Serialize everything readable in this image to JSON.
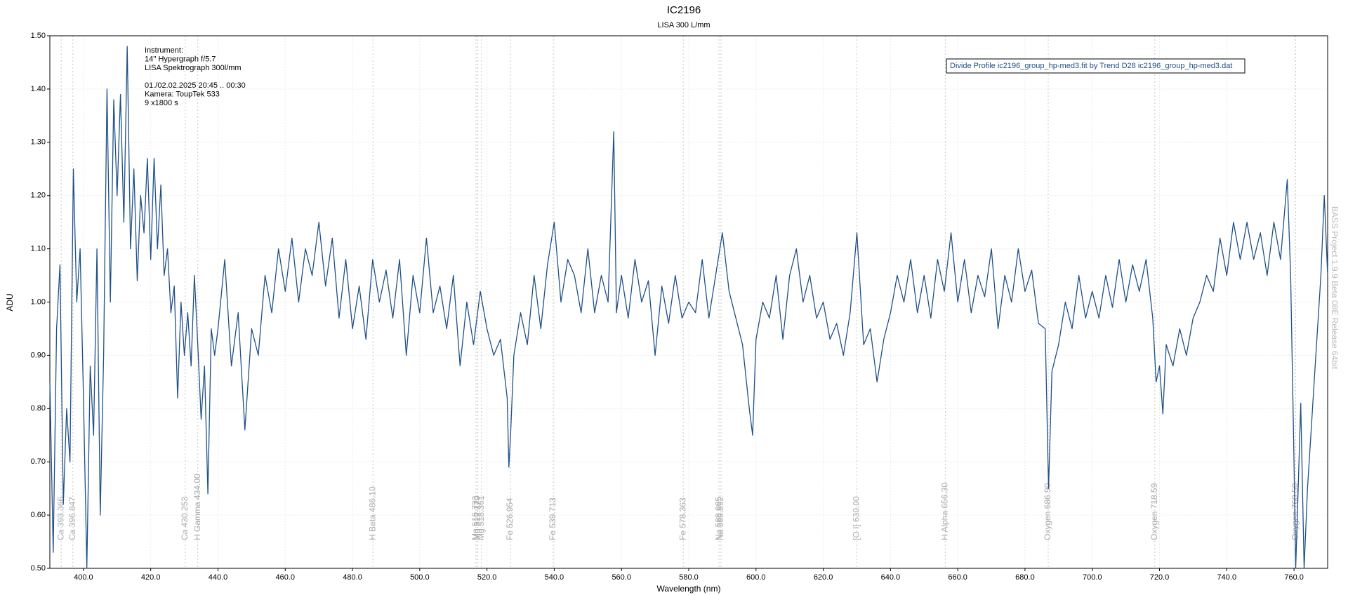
{
  "chart_data": {
    "type": "line",
    "title": "IC2196",
    "subtitle": "LISA 300 L/mm",
    "x_label": "Wavelength (nm)",
    "y_label": "ADU",
    "info": [
      "Instrument:",
      "14'' Hypergraph f/5.7",
      "LISA Spektrograph 300l/mm",
      "01./02.02.2025  20:45 .. 00:30",
      "Kamera: ToupTek 533",
      "9 x1800 s"
    ],
    "watermark": "BASS Project 1.9.9 Beta 08E Release 64bit",
    "legend": "upper right",
    "grid": true,
    "xlim": [
      390,
      770
    ],
    "ylim": [
      0.5,
      1.5
    ],
    "xticks": [
      {
        "value": 400,
        "label": "400.0"
      },
      {
        "value": 420,
        "label": "420.0"
      },
      {
        "value": 440,
        "label": "440.0"
      },
      {
        "value": 460,
        "label": "460.0"
      },
      {
        "value": 480,
        "label": "480.0"
      },
      {
        "value": 500,
        "label": "500.0"
      },
      {
        "value": 520,
        "label": "520.0"
      },
      {
        "value": 540,
        "label": "540.0"
      },
      {
        "value": 560,
        "label": "560.0"
      },
      {
        "value": 580,
        "label": "580.0"
      },
      {
        "value": 600,
        "label": "600.0"
      },
      {
        "value": 620,
        "label": "620.0"
      },
      {
        "value": 640,
        "label": "640.0"
      },
      {
        "value": 660,
        "label": "660.0"
      },
      {
        "value": 680,
        "label": "680.0"
      },
      {
        "value": 700,
        "label": "700.0"
      },
      {
        "value": 720,
        "label": "720.0"
      },
      {
        "value": 740,
        "label": "740.0"
      },
      {
        "value": 760,
        "label": "760.0"
      }
    ],
    "yticks": [
      {
        "value": 0.5,
        "label": "0.50"
      },
      {
        "value": 0.6,
        "label": "0.60"
      },
      {
        "value": 0.7,
        "label": "0.70"
      },
      {
        "value": 0.8,
        "label": "0.80"
      },
      {
        "value": 0.9,
        "label": "0.90"
      },
      {
        "value": 1.0,
        "label": "1.00"
      },
      {
        "value": 1.1,
        "label": "1.10"
      },
      {
        "value": 1.2,
        "label": "1.20"
      },
      {
        "value": 1.3,
        "label": "1.30"
      },
      {
        "value": 1.4,
        "label": "1.40"
      },
      {
        "value": 1.5,
        "label": "1.50"
      }
    ],
    "annotations": [
      {
        "x": 393.366,
        "label": "Ca 393.366"
      },
      {
        "x": 396.847,
        "label": "Ca 396.847"
      },
      {
        "x": 430.253,
        "label": "Ca 430.253"
      },
      {
        "x": 434.0,
        "label": "H Gamma 434.00"
      },
      {
        "x": 486.1,
        "label": "H Beta 486.10"
      },
      {
        "x": 516.733,
        "label": "Mg 516.733"
      },
      {
        "x": 517.27,
        "label": "Mg 517.270"
      },
      {
        "x": 518.361,
        "label": "Mg 518.361"
      },
      {
        "x": 526.954,
        "label": "Fe 526.954"
      },
      {
        "x": 539.713,
        "label": "Fe 539.713"
      },
      {
        "x": 578.363,
        "label": "Fe 578.363"
      },
      {
        "x": 588.995,
        "label": "Na 588.995"
      },
      {
        "x": 589.592,
        "label": "Na 589.592"
      },
      {
        "x": 630.0,
        "label": "[O I] 630.00"
      },
      {
        "x": 656.3,
        "label": "H Alpha 656.30"
      },
      {
        "x": 686.9,
        "label": "Oxygen 686.90"
      },
      {
        "x": 718.59,
        "label": "Oxygen 718.59"
      },
      {
        "x": 760.5,
        "label": "Oxygen 760.50"
      }
    ],
    "x": [
      390,
      391,
      392,
      393,
      394,
      395,
      396,
      397,
      398,
      399,
      400,
      401,
      402,
      403,
      404,
      405,
      406,
      407,
      408,
      409,
      410,
      411,
      412,
      413,
      414,
      415,
      416,
      417,
      418,
      419,
      420,
      421,
      422,
      423,
      424,
      425,
      426,
      427,
      428,
      429,
      430,
      431,
      432,
      433,
      434,
      435,
      436,
      437,
      438,
      439,
      440,
      442,
      444,
      446,
      448,
      450,
      452,
      454,
      456,
      458,
      460,
      462,
      464,
      466,
      468,
      470,
      472,
      474,
      476,
      478,
      480,
      482,
      484,
      486,
      488,
      490,
      492,
      494,
      496,
      498,
      500,
      502,
      504,
      506,
      508,
      510,
      512,
      514,
      516,
      518,
      520,
      522,
      524,
      526,
      526.5,
      527,
      528,
      530,
      532,
      534,
      536,
      538,
      540,
      542,
      544,
      546,
      548,
      550,
      552,
      554,
      556,
      557.7,
      558.5,
      560,
      562,
      564,
      566,
      568,
      570,
      572,
      574,
      576,
      578,
      580,
      582,
      584,
      586,
      588,
      590,
      592,
      594,
      596,
      598,
      599,
      600,
      602,
      604,
      606,
      608,
      610,
      612,
      614,
      616,
      618,
      620,
      622,
      624,
      626,
      628,
      630,
      632,
      634,
      636,
      638,
      640,
      642,
      644,
      646,
      648,
      650,
      652,
      654,
      656,
      658,
      660,
      662,
      664,
      666,
      668,
      670,
      672,
      674,
      676,
      678,
      680,
      682,
      684,
      686,
      687,
      688,
      690,
      692,
      694,
      696,
      698,
      700,
      702,
      704,
      706,
      708,
      710,
      712,
      714,
      716,
      718,
      719,
      720,
      721,
      722,
      724,
      726,
      728,
      730,
      732,
      734,
      736,
      738,
      740,
      742,
      744,
      746,
      748,
      750,
      752,
      754,
      756,
      758,
      759,
      760,
      760.5,
      761,
      762,
      763,
      764,
      765,
      766,
      767,
      768,
      769,
      770
    ],
    "series": [
      {
        "name": "Divide Profile ic2196_group_hp-med3.fit by Trend D28 ic2196_group_hp-med3.dat",
        "color": "#1f5088",
        "values": [
          0.85,
          0.53,
          0.95,
          1.07,
          0.62,
          0.8,
          0.7,
          1.25,
          1.0,
          1.1,
          0.82,
          0.5,
          0.88,
          0.75,
          1.1,
          0.6,
          0.9,
          1.4,
          1.0,
          1.38,
          1.2,
          1.39,
          1.15,
          1.48,
          1.1,
          1.25,
          1.04,
          1.2,
          1.13,
          1.27,
          1.08,
          1.27,
          1.1,
          1.22,
          1.05,
          1.1,
          0.98,
          1.03,
          0.82,
          1.0,
          0.9,
          0.98,
          0.88,
          1.05,
          0.92,
          0.78,
          0.88,
          0.64,
          0.95,
          0.9,
          0.95,
          1.08,
          0.88,
          0.98,
          0.76,
          0.95,
          0.9,
          1.05,
          0.98,
          1.1,
          1.02,
          1.12,
          1.0,
          1.1,
          1.05,
          1.15,
          1.03,
          1.12,
          0.97,
          1.08,
          0.95,
          1.03,
          0.93,
          1.08,
          1.0,
          1.06,
          0.97,
          1.08,
          0.9,
          1.05,
          0.98,
          1.12,
          0.98,
          1.03,
          0.95,
          1.05,
          0.88,
          1.0,
          0.92,
          1.02,
          0.95,
          0.9,
          0.93,
          0.82,
          0.69,
          0.75,
          0.9,
          0.98,
          0.92,
          1.05,
          0.95,
          1.07,
          1.15,
          1.0,
          1.08,
          1.05,
          0.98,
          1.1,
          0.98,
          1.05,
          1.0,
          1.32,
          0.98,
          1.05,
          0.97,
          1.08,
          1.0,
          1.04,
          0.9,
          1.03,
          0.96,
          1.05,
          0.97,
          1.0,
          0.98,
          1.08,
          0.97,
          1.05,
          1.13,
          1.02,
          0.97,
          0.92,
          0.8,
          0.75,
          0.93,
          1.0,
          0.97,
          1.05,
          0.93,
          1.05,
          1.1,
          1.0,
          1.05,
          0.97,
          1.0,
          0.93,
          0.96,
          0.9,
          0.98,
          1.13,
          0.92,
          0.95,
          0.85,
          0.93,
          0.98,
          1.05,
          1.0,
          1.08,
          0.98,
          1.05,
          0.97,
          1.08,
          1.02,
          1.13,
          1.0,
          1.08,
          0.98,
          1.05,
          1.01,
          1.1,
          0.95,
          1.05,
          1.0,
          1.1,
          1.02,
          1.06,
          0.96,
          0.95,
          0.65,
          0.87,
          0.92,
          1.0,
          0.95,
          1.05,
          0.97,
          1.02,
          0.97,
          1.05,
          0.99,
          1.08,
          1.0,
          1.07,
          1.02,
          1.08,
          0.97,
          0.85,
          0.88,
          0.79,
          0.92,
          0.88,
          0.95,
          0.9,
          0.97,
          1.0,
          1.05,
          1.02,
          1.12,
          1.05,
          1.15,
          1.08,
          1.15,
          1.08,
          1.13,
          1.05,
          1.15,
          1.08,
          1.23,
          1.05,
          0.7,
          0.5,
          0.6,
          0.81,
          0.5,
          0.65,
          0.75,
          0.85,
          0.95,
          1.05,
          1.2,
          1.05
        ]
      }
    ]
  }
}
